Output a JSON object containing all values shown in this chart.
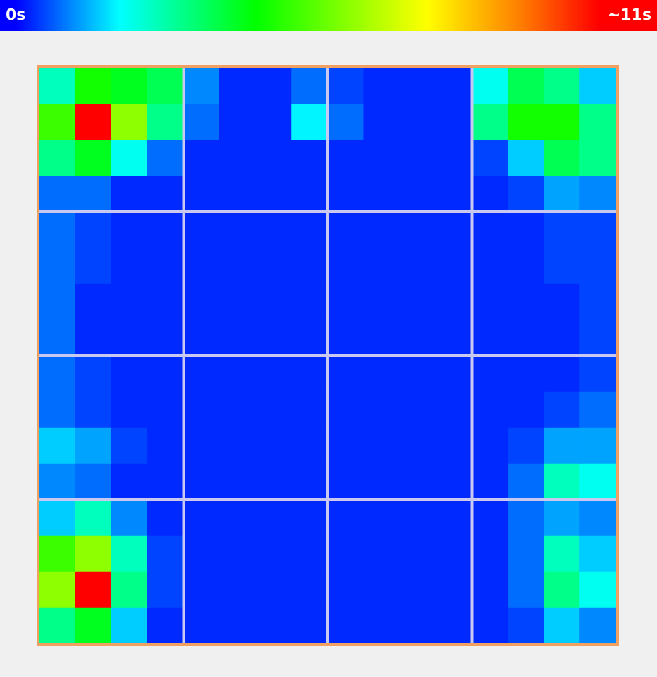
{
  "chart_data": {
    "type": "heatmap",
    "categories": [
      null,
      null,
      null,
      null,
      null,
      null,
      null,
      null,
      null,
      null,
      null,
      null,
      null,
      null,
      null,
      null
    ],
    "y_categories": [
      null,
      null,
      null,
      null,
      null,
      null,
      null,
      null,
      null,
      null,
      null,
      null,
      null,
      null,
      null,
      null
    ],
    "cells": [
      [
        2.5,
        4.5,
        4,
        3.5,
        1,
        0.3,
        0.3,
        0.8,
        0.5,
        0.3,
        0.3,
        0.3,
        2,
        3.5,
        3,
        1.5
      ],
      [
        5,
        10.5,
        6,
        3,
        0.8,
        0.3,
        0.3,
        1.8,
        0.8,
        0.3,
        0.3,
        0.3,
        3,
        4.5,
        4.5,
        3
      ],
      [
        3,
        4,
        2,
        0.8,
        0.3,
        0.3,
        0.3,
        0.3,
        0.3,
        0.3,
        0.3,
        0.3,
        0.5,
        1.5,
        3.5,
        3
      ],
      [
        0.8,
        0.8,
        0.3,
        0.3,
        0.3,
        0.3,
        0.3,
        0.3,
        0.3,
        0.3,
        0.3,
        0.3,
        0.3,
        0.5,
        1.2,
        1
      ],
      [
        0.8,
        0.5,
        0.3,
        0.3,
        0.3,
        0.3,
        0.3,
        0.3,
        0.3,
        0.3,
        0.3,
        0.3,
        0.3,
        0.3,
        0.5,
        0.5
      ],
      [
        0.8,
        0.5,
        0.3,
        0.3,
        0.3,
        0.3,
        0.3,
        0.3,
        0.3,
        0.3,
        0.3,
        0.3,
        0.3,
        0.3,
        0.5,
        0.5
      ],
      [
        0.8,
        0.3,
        0.3,
        0.3,
        0.3,
        0.3,
        0.3,
        0.3,
        0.3,
        0.3,
        0.3,
        0.3,
        0.3,
        0.3,
        0.3,
        0.5
      ],
      [
        0.8,
        0.3,
        0.3,
        0.3,
        0.3,
        0.3,
        0.3,
        0.3,
        0.3,
        0.3,
        0.3,
        0.3,
        0.3,
        0.3,
        0.3,
        0.5
      ],
      [
        0.8,
        0.5,
        0.3,
        0.3,
        0.3,
        0.3,
        0.3,
        0.3,
        0.3,
        0.3,
        0.3,
        0.3,
        0.3,
        0.3,
        0.3,
        0.5
      ],
      [
        0.8,
        0.5,
        0.3,
        0.3,
        0.3,
        0.3,
        0.3,
        0.3,
        0.3,
        0.3,
        0.3,
        0.3,
        0.3,
        0.3,
        0.5,
        0.8
      ],
      [
        1.5,
        1.2,
        0.5,
        0.3,
        0.3,
        0.3,
        0.3,
        0.3,
        0.3,
        0.3,
        0.3,
        0.3,
        0.3,
        0.5,
        1.2,
        1.2
      ],
      [
        1,
        0.8,
        0.3,
        0.3,
        0.3,
        0.3,
        0.3,
        0.3,
        0.3,
        0.3,
        0.3,
        0.3,
        0.3,
        0.8,
        2.5,
        2
      ],
      [
        1.5,
        2.5,
        1,
        0.3,
        0.3,
        0.3,
        0.3,
        0.3,
        0.3,
        0.3,
        0.3,
        0.3,
        0.3,
        0.8,
        1.2,
        1
      ],
      [
        5,
        6,
        2.5,
        0.5,
        0.3,
        0.3,
        0.3,
        0.3,
        0.3,
        0.3,
        0.3,
        0.3,
        0.3,
        0.8,
        2.5,
        1.5
      ],
      [
        6,
        10.5,
        3,
        0.5,
        0.3,
        0.3,
        0.3,
        0.3,
        0.3,
        0.3,
        0.3,
        0.3,
        0.3,
        0.8,
        3,
        2
      ],
      [
        3,
        4,
        1.5,
        0.3,
        0.3,
        0.3,
        0.3,
        0.3,
        0.3,
        0.3,
        0.3,
        0.3,
        0.3,
        0.5,
        1.5,
        1
      ]
    ],
    "clim": [
      0,
      11
    ],
    "cticks": [
      {
        "value": 0,
        "label": "0s"
      },
      {
        "value": 11,
        "label": "~11s"
      }
    ],
    "grid": true,
    "tick_labels": false
  }
}
